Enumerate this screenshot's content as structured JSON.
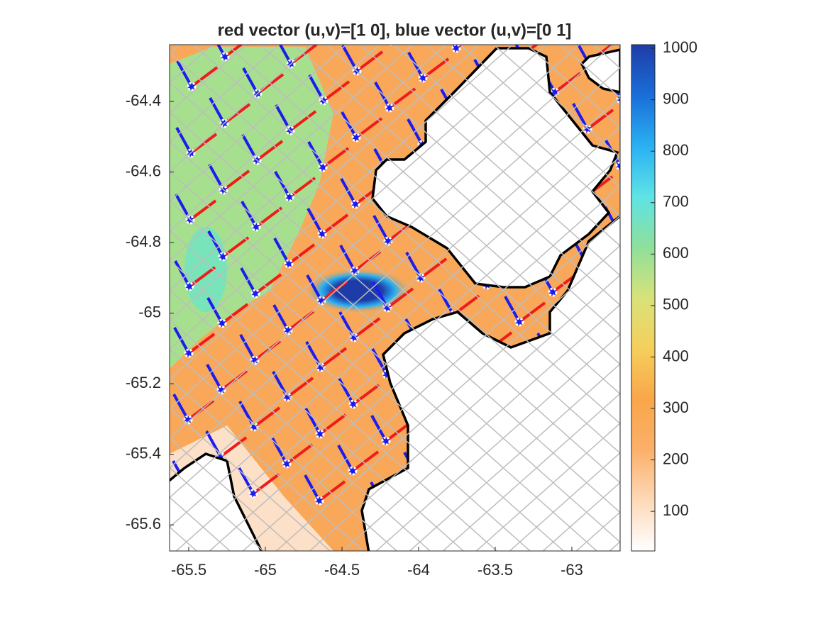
{
  "chart_data": {
    "type": "heatmap",
    "title": "red vector (u,v)=[1 0], blue vector (u,v)=[0 1]",
    "xlim": [
      -65.625,
      -62.685
    ],
    "xticks": [
      -65.5,
      -65,
      -64.5,
      -64,
      -63.5,
      -63
    ],
    "ylim": [
      -65.674,
      -64.239
    ],
    "yticks": [
      -64.4,
      -64.6,
      -64.8,
      -65,
      -65.2,
      -65.4,
      -65.6
    ],
    "colorbar": {
      "clim": [
        23,
        1007
      ],
      "ticks": [
        100,
        200,
        300,
        400,
        500,
        600,
        700,
        800,
        900,
        1000
      ]
    },
    "grid": true
  }
}
